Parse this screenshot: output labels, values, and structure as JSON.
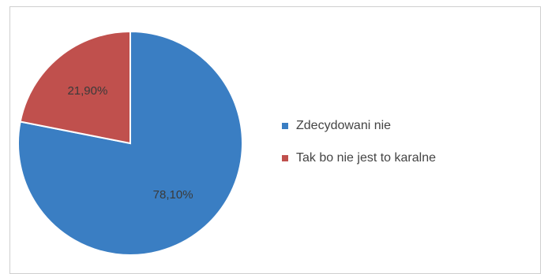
{
  "chart_data": {
    "type": "pie",
    "title": "",
    "start_angle_deg": 0,
    "direction": "clockwise",
    "slices": [
      {
        "label": "Zdecydowani nie",
        "value": 78.1,
        "display": "78,10%",
        "color": "#3A7EC3"
      },
      {
        "label": "Tak bo nie jest to karalne",
        "value": 21.9,
        "display": "21,90%",
        "color": "#C0504D"
      }
    ],
    "legend_position": "right"
  }
}
